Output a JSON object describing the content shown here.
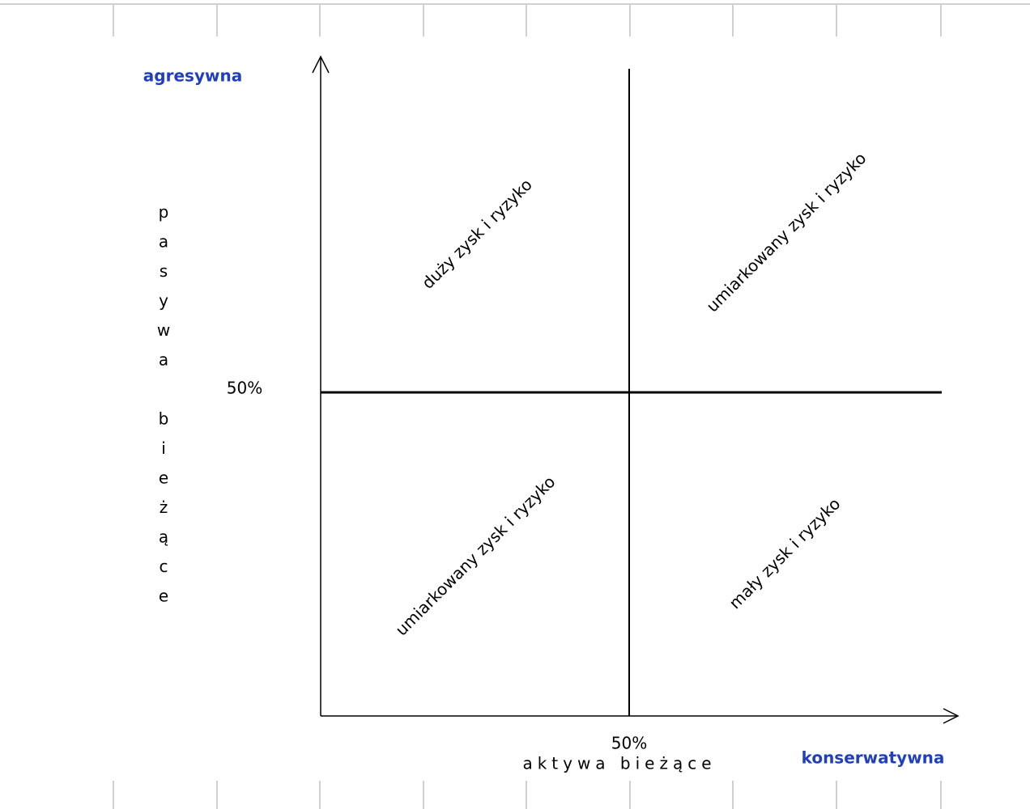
{
  "top_label": "agresywna",
  "bottom_right_label": "konserwatywna",
  "y_axis_label": "pasywa bieżące",
  "x_axis_label": "aktywa bieżące",
  "y_mid_label": "50%",
  "x_mid_label": "50%",
  "quadrants": {
    "top_left": "duży zysk i ryzyko",
    "top_right": "umiarkowany zysk i ryzyko",
    "bottom_left": "umiarkowany zysk i ryzyko",
    "bottom_right": "mały zysk i ryzyko"
  }
}
